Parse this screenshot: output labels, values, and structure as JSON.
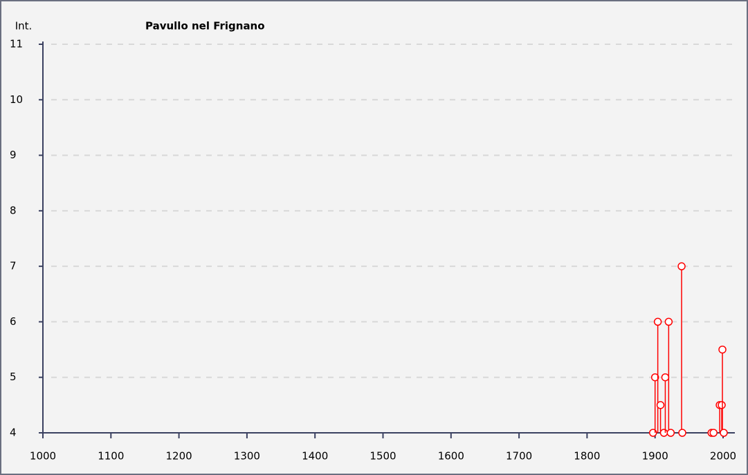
{
  "chart_data": {
    "type": "stem",
    "title": "Pavullo nel Frignano",
    "y_label": "Int.",
    "x": [
      1897,
      1900,
      1904,
      1908,
      1913,
      1915,
      1920,
      1923,
      1939,
      1940,
      1983,
      1986,
      1995,
      1998,
      1999,
      2001
    ],
    "values": [
      4,
      5,
      6,
      4.5,
      4,
      5,
      6,
      4,
      7,
      4,
      4,
      4,
      4.5,
      4.5,
      5.5,
      4
    ],
    "color": "#ff0000",
    "xlim": [
      1000,
      2000
    ],
    "xticks": [
      1000,
      1100,
      1200,
      1300,
      1400,
      1500,
      1600,
      1700,
      1800,
      1900,
      2000
    ],
    "ylim": [
      4,
      11
    ],
    "yticks": [
      4,
      5,
      6,
      7,
      8,
      9,
      10,
      11
    ],
    "grid": true
  }
}
